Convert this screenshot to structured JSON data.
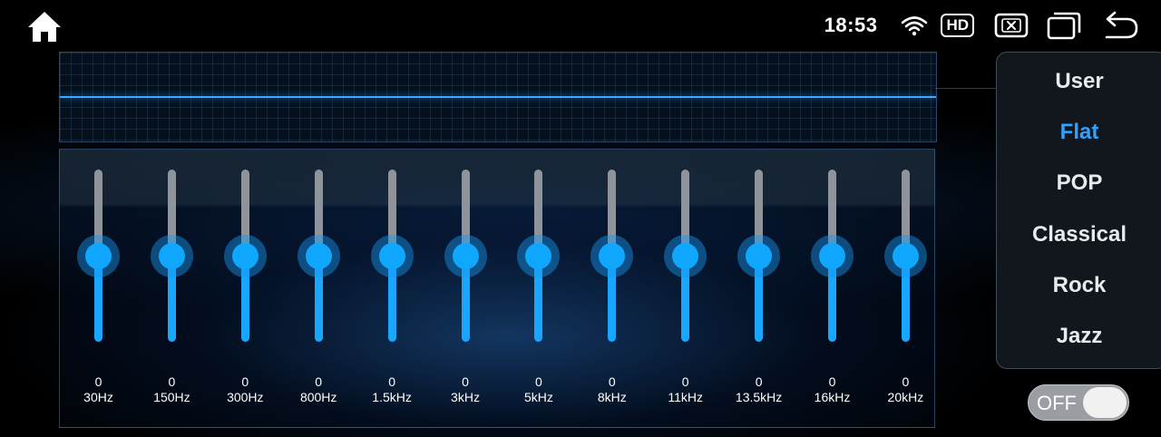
{
  "status_bar": {
    "time": "18:53",
    "hd_label": "HD",
    "icons": [
      "home-icon",
      "wifi-icon",
      "close-box-icon",
      "recent-apps-icon",
      "back-icon"
    ]
  },
  "equalizer": {
    "bands": [
      {
        "freq": "30Hz",
        "value": "0"
      },
      {
        "freq": "150Hz",
        "value": "0"
      },
      {
        "freq": "300Hz",
        "value": "0"
      },
      {
        "freq": "800Hz",
        "value": "0"
      },
      {
        "freq": "1.5kHz",
        "value": "0"
      },
      {
        "freq": "3kHz",
        "value": "0"
      },
      {
        "freq": "5kHz",
        "value": "0"
      },
      {
        "freq": "8kHz",
        "value": "0"
      },
      {
        "freq": "11kHz",
        "value": "0"
      },
      {
        "freq": "13.5kHz",
        "value": "0"
      },
      {
        "freq": "16kHz",
        "value": "0"
      },
      {
        "freq": "20kHz",
        "value": "0"
      }
    ]
  },
  "presets": {
    "items": [
      "User",
      "Flat",
      "POP",
      "Classical",
      "Rock",
      "Jazz"
    ],
    "selected": "Flat"
  },
  "toggle": {
    "label": "OFF",
    "state": "off"
  },
  "colors": {
    "accent": "#19a6ff",
    "track_inactive": "#8e9499",
    "selected_preset": "#2fa2ff"
  }
}
